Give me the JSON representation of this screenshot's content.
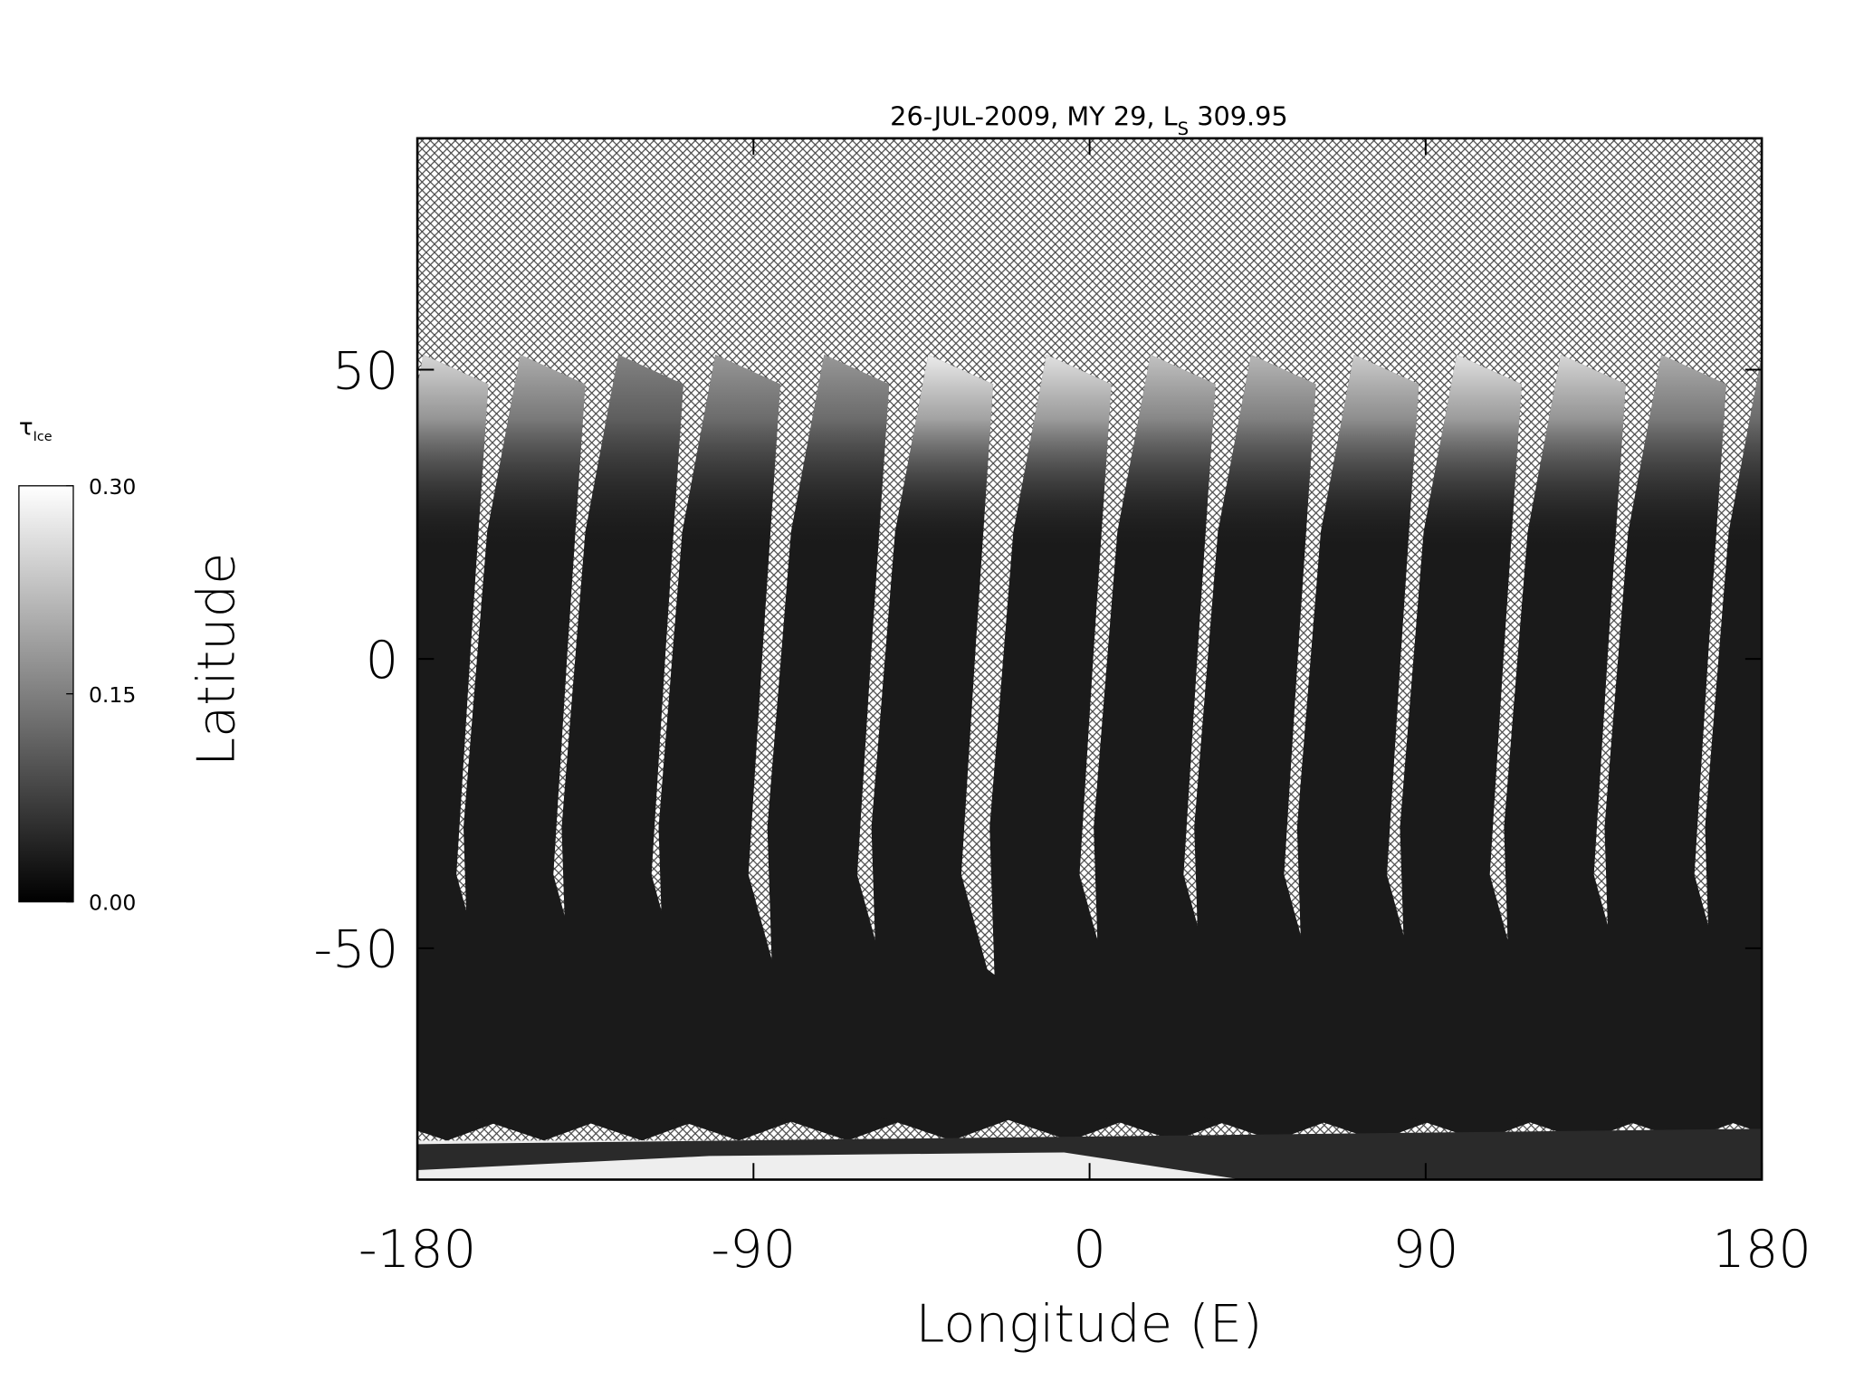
{
  "chart_data": {
    "type": "map",
    "title": [
      "26-JUL-2009, MY 29,  L",
      "S",
      " 309.95"
    ],
    "xlabel": "Longitude (E)",
    "ylabel": "Latitude",
    "xlim": [
      -180,
      180
    ],
    "xticks": [
      -180,
      -90,
      0,
      90,
      180
    ],
    "ylim": [
      -90,
      90
    ],
    "yticks": [
      -50,
      0,
      50
    ],
    "colorbar": {
      "label": [
        "τ",
        "Ice"
      ],
      "lim": [
        0,
        0.3
      ],
      "colors": [
        "#000000",
        "#ffffff"
      ],
      "ticks": [
        {
          "value": 0,
          "label": "0.00"
        },
        {
          "value": 0.15,
          "label": "0.15"
        },
        {
          "value": 0.3,
          "label": "0.30"
        }
      ]
    }
  }
}
